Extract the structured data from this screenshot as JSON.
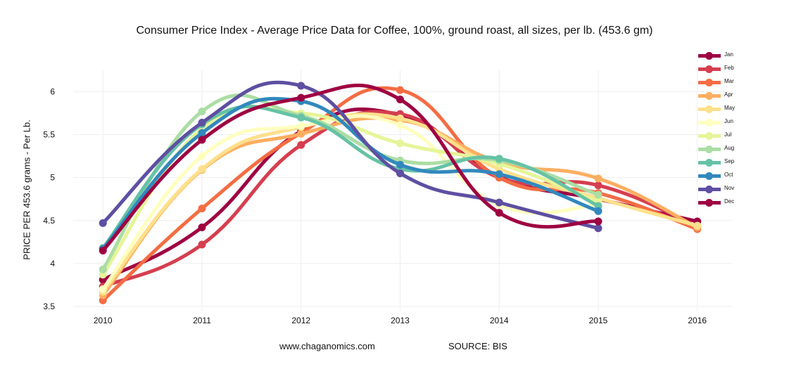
{
  "chart_data": {
    "type": "line",
    "title": "Consumer Price Index - Average Price Data for Coffee, 100%, ground roast, all sizes, per lb. (453.6 gm)",
    "xlabel": "",
    "ylabel": "PRICE PER 453.6 grams - Per Lb.",
    "x": [
      2010,
      2011,
      2012,
      2013,
      2014,
      2015,
      2016
    ],
    "xticks": [
      "2010",
      "2011",
      "2012",
      "2013",
      "2014",
      "2015",
      "2016"
    ],
    "yticks": [
      "3.5",
      "4",
      "4.5",
      "5",
      "5.5",
      "6"
    ],
    "xlim": [
      2009.7,
      2016.35
    ],
    "ylim": [
      3.45,
      6.25
    ],
    "grid": true,
    "legend_position": "right",
    "series": [
      {
        "name": "Jan",
        "color": "#9e0142",
        "values": [
          3.81,
          4.42,
          5.54,
          5.73,
          5.01,
          4.75,
          4.49
        ]
      },
      {
        "name": "Feb",
        "color": "#d53e4f",
        "values": [
          3.73,
          4.22,
          5.38,
          5.74,
          5.0,
          4.91,
          4.43
        ]
      },
      {
        "name": "Mar",
        "color": "#f46d43",
        "values": [
          3.57,
          4.64,
          5.52,
          6.02,
          5.0,
          4.82,
          4.4
        ]
      },
      {
        "name": "Apr",
        "color": "#fdae61",
        "values": [
          3.63,
          5.09,
          5.51,
          5.67,
          5.18,
          4.99,
          4.42
        ]
      },
      {
        "name": "May",
        "color": "#fee08b",
        "values": [
          3.67,
          5.1,
          5.59,
          5.69,
          5.1,
          4.76,
          4.44
        ]
      },
      {
        "name": "Jun",
        "color": "#ffffbf",
        "values": [
          3.7,
          5.25,
          5.6,
          5.61,
          4.68,
          4.68,
          null
        ]
      },
      {
        "name": "Jul",
        "color": "#e6f598",
        "values": [
          3.87,
          5.57,
          5.75,
          5.4,
          5.16,
          4.72,
          null
        ]
      },
      {
        "name": "Aug",
        "color": "#abdda4",
        "values": [
          3.93,
          5.77,
          5.72,
          5.2,
          5.2,
          4.8,
          null
        ]
      },
      {
        "name": "Sep",
        "color": "#66c2a5",
        "values": [
          4.18,
          5.62,
          5.7,
          5.1,
          5.22,
          4.67,
          null
        ]
      },
      {
        "name": "Oct",
        "color": "#3288bd",
        "values": [
          4.17,
          5.52,
          5.89,
          5.15,
          5.04,
          4.61,
          null
        ]
      },
      {
        "name": "Nov",
        "color": "#5e4fa2",
        "values": [
          4.47,
          5.64,
          6.07,
          5.05,
          4.71,
          4.41,
          null
        ]
      },
      {
        "name": "Dec",
        "color": "#9e0142",
        "values": [
          4.15,
          5.44,
          5.93,
          5.91,
          4.59,
          4.49,
          null
        ]
      }
    ]
  },
  "footer": {
    "website": "www.chaganomics.com",
    "source": "SOURCE: BIS"
  },
  "colors": {
    "grid": "#eeeeee",
    "text": "#111111",
    "background": "#ffffff"
  }
}
